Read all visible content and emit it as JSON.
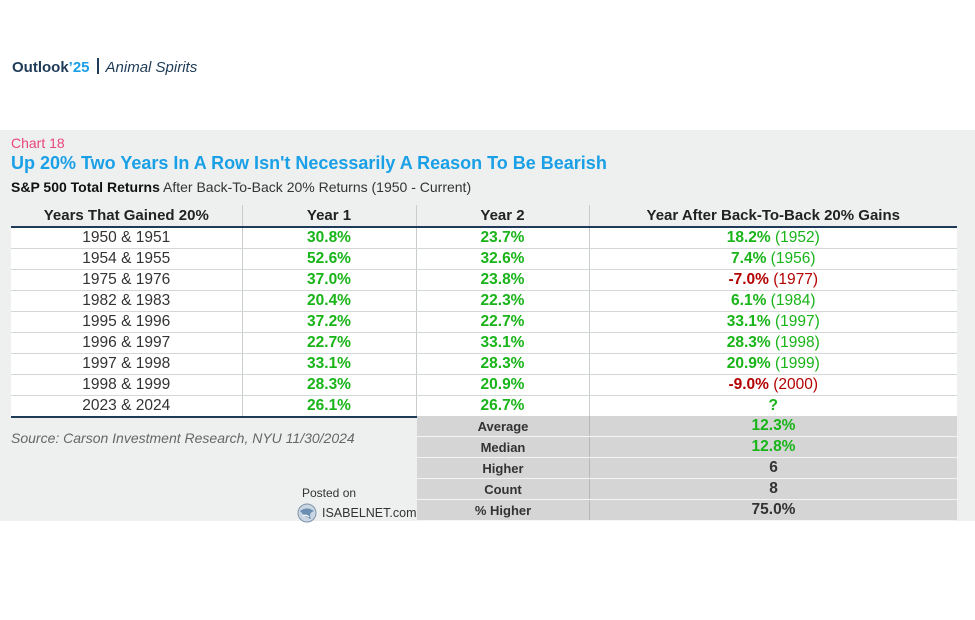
{
  "brand": {
    "name": "Outlook",
    "year": "’25",
    "section": "Animal Spirits"
  },
  "chart_number": "Chart 18",
  "title": "Up 20% Two Years In A Row Isn't Necessarily A Reason To Be Bearish",
  "subtitle_bold": "S&P 500 Total Returns",
  "subtitle_rest": "After Back-To-Back 20% Returns (1950 - Current)",
  "colors": {
    "positive": "#18b418",
    "negative": "#b40000",
    "title": "#1aa0e6",
    "chart_number": "#e8467c"
  },
  "chart_data": {
    "type": "table",
    "columns": [
      "Years That Gained 20%",
      "Year 1",
      "Year 2",
      "Year After Back-To-Back 20% Gains"
    ],
    "rows": [
      {
        "years": "1950 & 1951",
        "year1": "30.8%",
        "year2": "23.7%",
        "next": "18.2%",
        "next_year": "(1952)",
        "next_sign": "pos"
      },
      {
        "years": "1954 & 1955",
        "year1": "52.6%",
        "year2": "32.6%",
        "next": "7.4%",
        "next_year": "(1956)",
        "next_sign": "pos"
      },
      {
        "years": "1975 & 1976",
        "year1": "37.0%",
        "year2": "23.8%",
        "next": "-7.0%",
        "next_year": "(1977)",
        "next_sign": "neg"
      },
      {
        "years": "1982 & 1983",
        "year1": "20.4%",
        "year2": "22.3%",
        "next": "6.1%",
        "next_year": "(1984)",
        "next_sign": "pos"
      },
      {
        "years": "1995 & 1996",
        "year1": "37.2%",
        "year2": "22.7%",
        "next": "33.1%",
        "next_year": "(1997)",
        "next_sign": "pos"
      },
      {
        "years": "1996 & 1997",
        "year1": "22.7%",
        "year2": "33.1%",
        "next": "28.3%",
        "next_year": "(1998)",
        "next_sign": "pos"
      },
      {
        "years": "1997 & 1998",
        "year1": "33.1%",
        "year2": "28.3%",
        "next": "20.9%",
        "next_year": "(1999)",
        "next_sign": "pos"
      },
      {
        "years": "1998 & 1999",
        "year1": "28.3%",
        "year2": "20.9%",
        "next": "-9.0%",
        "next_year": "(2000)",
        "next_sign": "neg"
      },
      {
        "years": "2023 & 2024",
        "year1": "26.1%",
        "year2": "26.7%",
        "next": "?",
        "next_year": "",
        "next_sign": "pos"
      }
    ],
    "summary": [
      {
        "label": "Average",
        "value": "12.3%",
        "style": "green"
      },
      {
        "label": "Median",
        "value": "12.8%",
        "style": "green"
      },
      {
        "label": "Higher",
        "value": "6",
        "style": "dark"
      },
      {
        "label": "Count",
        "value": "8",
        "style": "dark"
      },
      {
        "label": "% Higher",
        "value": "75.0%",
        "style": "dark"
      }
    ]
  },
  "source": "Source: Carson Investment Research, NYU 11/30/2024",
  "watermark": {
    "posted": "Posted on",
    "site": "ISABELNET.com"
  }
}
